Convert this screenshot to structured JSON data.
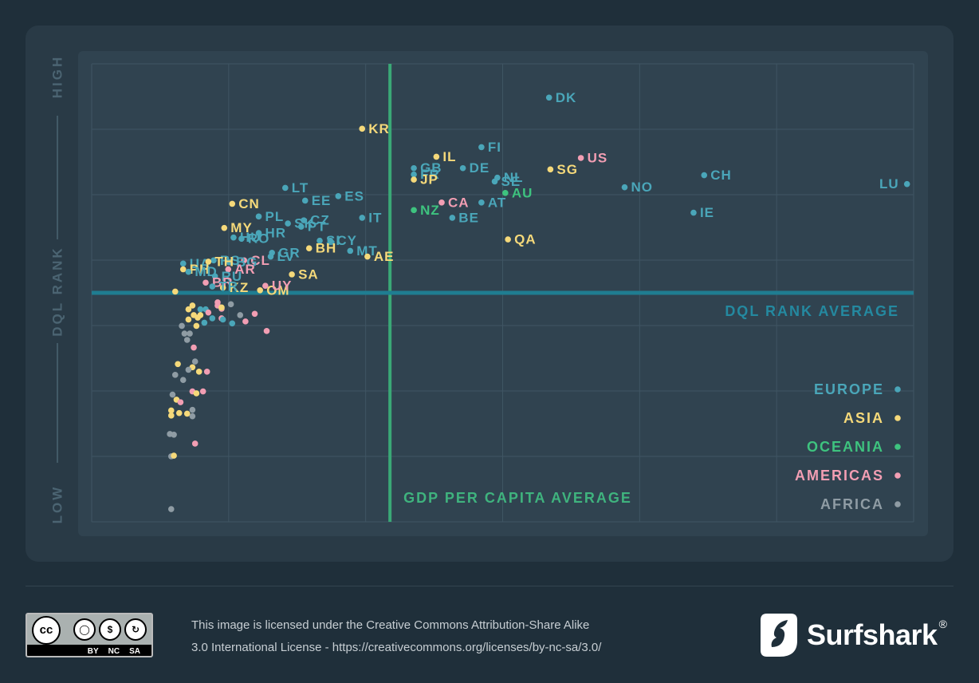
{
  "chart_data": {
    "type": "scatter",
    "xlabel": "",
    "ylabel": "DQL RANK",
    "y_axis_high": "HIGH",
    "y_axis_low": "LOW",
    "x_average_label": "GDP PER CAPITA AVERAGE",
    "y_average_label": "DQL RANK AVERAGE",
    "x_average": 2.25,
    "y_average": 3.6,
    "xlim": [
      0,
      6.2
    ],
    "ylim": [
      0,
      7.2
    ],
    "grid": true,
    "legend_placement": "bottom-right",
    "legend": [
      {
        "name": "EUROPE",
        "color": "#4aa6b9"
      },
      {
        "name": "ASIA",
        "color": "#f5d97a"
      },
      {
        "name": "OCEANIA",
        "color": "#3ec37f"
      },
      {
        "name": "AMERICAS",
        "color": "#f29eb3"
      },
      {
        "name": "AFRICA",
        "color": "#8f9ca4"
      }
    ],
    "points": [
      {
        "label": "DK",
        "x": 3.45,
        "y": 6.67,
        "region": "EUROPE"
      },
      {
        "label": "KR",
        "x": 2.04,
        "y": 6.18,
        "region": "ASIA"
      },
      {
        "label": "FI",
        "x": 2.94,
        "y": 5.89,
        "region": "EUROPE"
      },
      {
        "label": "IL",
        "x": 2.6,
        "y": 5.74,
        "region": "ASIA"
      },
      {
        "label": "US",
        "x": 3.69,
        "y": 5.72,
        "region": "AMERICAS"
      },
      {
        "label": "GB",
        "x": 2.43,
        "y": 5.56,
        "region": "EUROPE"
      },
      {
        "label": "DE",
        "x": 2.8,
        "y": 5.56,
        "region": "EUROPE"
      },
      {
        "label": "NL",
        "x": 3.06,
        "y": 5.41,
        "region": "EUROPE"
      },
      {
        "label": "SG",
        "x": 3.46,
        "y": 5.54,
        "region": "ASIA"
      },
      {
        "label": "CH",
        "x": 4.62,
        "y": 5.45,
        "region": "EUROPE"
      },
      {
        "label": "FR",
        "x": 2.43,
        "y": 5.46,
        "region": "EUROPE"
      },
      {
        "label": "JP",
        "x": 2.43,
        "y": 5.38,
        "region": "ASIA"
      },
      {
        "label": "SE",
        "x": 3.04,
        "y": 5.35,
        "region": "EUROPE"
      },
      {
        "label": "LU",
        "x": 6.15,
        "y": 5.31,
        "region": "EUROPE"
      },
      {
        "label": "NO",
        "x": 4.02,
        "y": 5.26,
        "region": "EUROPE"
      },
      {
        "label": "LT",
        "x": 1.46,
        "y": 5.25,
        "region": "EUROPE"
      },
      {
        "label": "AU",
        "x": 3.12,
        "y": 5.17,
        "region": "OCEANIA"
      },
      {
        "label": "ES",
        "x": 1.86,
        "y": 5.12,
        "region": "EUROPE"
      },
      {
        "label": "EE",
        "x": 1.61,
        "y": 5.05,
        "region": "EUROPE"
      },
      {
        "label": "CN",
        "x": 1.06,
        "y": 5.0,
        "region": "ASIA"
      },
      {
        "label": "CA",
        "x": 2.64,
        "y": 5.02,
        "region": "AMERICAS"
      },
      {
        "label": "AT",
        "x": 2.94,
        "y": 5.02,
        "region": "EUROPE"
      },
      {
        "label": "NZ",
        "x": 2.43,
        "y": 4.9,
        "region": "OCEANIA"
      },
      {
        "label": "IE",
        "x": 4.54,
        "y": 4.86,
        "region": "EUROPE"
      },
      {
        "label": "PL",
        "x": 1.26,
        "y": 4.8,
        "region": "EUROPE"
      },
      {
        "label": "IT",
        "x": 2.04,
        "y": 4.78,
        "region": "EUROPE"
      },
      {
        "label": "BE",
        "x": 2.72,
        "y": 4.78,
        "region": "EUROPE"
      },
      {
        "label": "SK",
        "x": 1.48,
        "y": 4.69,
        "region": "EUROPE"
      },
      {
        "label": "CZ",
        "x": 1.6,
        "y": 4.74,
        "region": "EUROPE"
      },
      {
        "label": "MY",
        "x": 1.0,
        "y": 4.62,
        "region": "ASIA"
      },
      {
        "label": "PT",
        "x": 1.58,
        "y": 4.64,
        "region": "EUROPE"
      },
      {
        "label": "QA",
        "x": 3.14,
        "y": 4.44,
        "region": "ASIA"
      },
      {
        "label": "HU",
        "x": 1.07,
        "y": 4.47,
        "region": "EUROPE"
      },
      {
        "label": "HR",
        "x": 1.26,
        "y": 4.54,
        "region": "EUROPE"
      },
      {
        "label": "RO",
        "x": 1.13,
        "y": 4.45,
        "region": "EUROPE"
      },
      {
        "label": "SI",
        "x": 1.72,
        "y": 4.42,
        "region": "EUROPE"
      },
      {
        "label": "CY",
        "x": 1.8,
        "y": 4.42,
        "region": "EUROPE"
      },
      {
        "label": "BH",
        "x": 1.64,
        "y": 4.3,
        "region": "ASIA"
      },
      {
        "label": "MT",
        "x": 1.95,
        "y": 4.26,
        "region": "EUROPE"
      },
      {
        "label": "AE",
        "x": 2.08,
        "y": 4.17,
        "region": "ASIA"
      },
      {
        "label": "GR",
        "x": 1.36,
        "y": 4.23,
        "region": "EUROPE"
      },
      {
        "label": "CL",
        "x": 1.15,
        "y": 4.11,
        "region": "AMERICAS"
      },
      {
        "label": "LV",
        "x": 1.35,
        "y": 4.17,
        "region": "EUROPE"
      },
      {
        "label": "RS",
        "x": 0.92,
        "y": 4.11,
        "region": "EUROPE"
      },
      {
        "label": "BG",
        "x": 1.04,
        "y": 4.08,
        "region": "EUROPE"
      },
      {
        "label": "UA",
        "x": 0.69,
        "y": 4.06,
        "region": "EUROPE"
      },
      {
        "label": "TH",
        "x": 0.88,
        "y": 4.09,
        "region": "ASIA"
      },
      {
        "label": "AR",
        "x": 1.03,
        "y": 3.97,
        "region": "AMERICAS"
      },
      {
        "label": "SA",
        "x": 1.51,
        "y": 3.89,
        "region": "ASIA"
      },
      {
        "label": "PH",
        "x": 0.69,
        "y": 3.97,
        "region": "ASIA"
      },
      {
        "label": "MD",
        "x": 0.73,
        "y": 3.93,
        "region": "EUROPE"
      },
      {
        "label": "RU",
        "x": 0.93,
        "y": 3.86,
        "region": "EUROPE"
      },
      {
        "label": "BR",
        "x": 0.86,
        "y": 3.76,
        "region": "AMERICAS"
      },
      {
        "label": "KZ",
        "x": 0.99,
        "y": 3.68,
        "region": "ASIA"
      },
      {
        "label": "TR",
        "x": 0.91,
        "y": 3.7,
        "region": "EUROPE"
      },
      {
        "label": "OM",
        "x": 1.27,
        "y": 3.64,
        "region": "ASIA"
      },
      {
        "label": "UY",
        "x": 1.31,
        "y": 3.71,
        "region": "AMERICAS"
      },
      {
        "label": "",
        "x": 0.63,
        "y": 3.62,
        "region": "ASIA"
      },
      {
        "label": "",
        "x": 0.73,
        "y": 3.34,
        "region": "ASIA"
      },
      {
        "label": "",
        "x": 0.76,
        "y": 3.4,
        "region": "ASIA"
      },
      {
        "label": "",
        "x": 0.77,
        "y": 3.25,
        "region": "ASIA"
      },
      {
        "label": "",
        "x": 0.8,
        "y": 3.21,
        "region": "ASIA"
      },
      {
        "label": "",
        "x": 0.82,
        "y": 3.34,
        "region": "EUROPE"
      },
      {
        "label": "",
        "x": 0.85,
        "y": 3.13,
        "region": "EUROPE"
      },
      {
        "label": "",
        "x": 0.86,
        "y": 3.34,
        "region": "EUROPE"
      },
      {
        "label": "",
        "x": 0.88,
        "y": 3.29,
        "region": "AMERICAS"
      },
      {
        "label": "",
        "x": 0.91,
        "y": 3.2,
        "region": "EUROPE"
      },
      {
        "label": "",
        "x": 0.95,
        "y": 3.4,
        "region": "AMERICAS"
      },
      {
        "label": "",
        "x": 0.98,
        "y": 3.35,
        "region": "AMERICAS"
      },
      {
        "label": "",
        "x": 0.98,
        "y": 3.2,
        "region": "AMERICAS"
      },
      {
        "label": "",
        "x": 0.99,
        "y": 3.18,
        "region": "EUROPE"
      },
      {
        "label": "",
        "x": 1.05,
        "y": 3.42,
        "region": "AFRICA"
      },
      {
        "label": "",
        "x": 1.06,
        "y": 3.12,
        "region": "EUROPE"
      },
      {
        "label": "",
        "x": 1.12,
        "y": 3.25,
        "region": "AFRICA"
      },
      {
        "label": "",
        "x": 1.16,
        "y": 3.15,
        "region": "AMERICAS"
      },
      {
        "label": "",
        "x": 1.23,
        "y": 3.27,
        "region": "AMERICAS"
      },
      {
        "label": "",
        "x": 1.32,
        "y": 3.0,
        "region": "AMERICAS"
      },
      {
        "label": "",
        "x": 0.95,
        "y": 3.45,
        "region": "AMERICAS"
      },
      {
        "label": "",
        "x": 0.98,
        "y": 3.37,
        "region": "ASIA"
      },
      {
        "label": "",
        "x": 0.82,
        "y": 3.25,
        "region": "ASIA"
      },
      {
        "label": "",
        "x": 0.73,
        "y": 3.18,
        "region": "ASIA"
      },
      {
        "label": "",
        "x": 0.79,
        "y": 3.08,
        "region": "ASIA"
      },
      {
        "label": "",
        "x": 0.68,
        "y": 3.08,
        "region": "AFRICA"
      },
      {
        "label": "",
        "x": 0.7,
        "y": 2.96,
        "region": "AFRICA"
      },
      {
        "label": "",
        "x": 0.74,
        "y": 2.96,
        "region": "AFRICA"
      },
      {
        "label": "",
        "x": 0.72,
        "y": 2.86,
        "region": "AFRICA"
      },
      {
        "label": "",
        "x": 0.77,
        "y": 2.74,
        "region": "AMERICAS"
      },
      {
        "label": "",
        "x": 0.78,
        "y": 2.52,
        "region": "AFRICA"
      },
      {
        "label": "",
        "x": 0.76,
        "y": 2.43,
        "region": "ASIA"
      },
      {
        "label": "",
        "x": 0.81,
        "y": 2.36,
        "region": "ASIA"
      },
      {
        "label": "",
        "x": 0.73,
        "y": 2.39,
        "region": "AFRICA"
      },
      {
        "label": "",
        "x": 0.65,
        "y": 2.48,
        "region": "ASIA"
      },
      {
        "label": "",
        "x": 0.63,
        "y": 2.31,
        "region": "AFRICA"
      },
      {
        "label": "",
        "x": 0.69,
        "y": 2.23,
        "region": "AFRICA"
      },
      {
        "label": "",
        "x": 0.87,
        "y": 2.36,
        "region": "AMERICAS"
      },
      {
        "label": "",
        "x": 0.76,
        "y": 2.05,
        "region": "AMERICAS"
      },
      {
        "label": "",
        "x": 0.79,
        "y": 2.02,
        "region": "ASIA"
      },
      {
        "label": "",
        "x": 0.84,
        "y": 2.05,
        "region": "AMERICAS"
      },
      {
        "label": "",
        "x": 0.61,
        "y": 2.0,
        "region": "AFRICA"
      },
      {
        "label": "",
        "x": 0.64,
        "y": 1.92,
        "region": "ASIA"
      },
      {
        "label": "",
        "x": 0.67,
        "y": 1.88,
        "region": "AMERICAS"
      },
      {
        "label": "",
        "x": 0.76,
        "y": 1.76,
        "region": "AFRICA"
      },
      {
        "label": "",
        "x": 0.72,
        "y": 1.7,
        "region": "ASIA"
      },
      {
        "label": "",
        "x": 0.6,
        "y": 1.75,
        "region": "ASIA"
      },
      {
        "label": "",
        "x": 0.76,
        "y": 1.66,
        "region": "AFRICA"
      },
      {
        "label": "",
        "x": 0.6,
        "y": 1.67,
        "region": "ASIA"
      },
      {
        "label": "",
        "x": 0.66,
        "y": 1.71,
        "region": "ASIA"
      },
      {
        "label": "",
        "x": 0.59,
        "y": 1.38,
        "region": "AFRICA"
      },
      {
        "label": "",
        "x": 0.62,
        "y": 1.37,
        "region": "AFRICA"
      },
      {
        "label": "",
        "x": 0.78,
        "y": 1.23,
        "region": "AMERICAS"
      },
      {
        "label": "",
        "x": 0.6,
        "y": 1.03,
        "region": "AFRICA"
      },
      {
        "label": "",
        "x": 0.62,
        "y": 1.04,
        "region": "ASIA"
      },
      {
        "label": "",
        "x": 0.6,
        "y": 0.2,
        "region": "AFRICA"
      }
    ]
  },
  "footer": {
    "license_line1": "This image is licensed under the Creative Commons Attribution-Share Alike",
    "license_line2": "3.0 International License - https://creativecommons.org/licenses/by-nc-sa/3.0/",
    "cc_badge": {
      "main": "cc",
      "tags": [
        "BY",
        "NC",
        "SA"
      ]
    },
    "brand": "Surfshark",
    "brand_mark": "®",
    "brand_icon": "surfshark-logo-icon"
  }
}
